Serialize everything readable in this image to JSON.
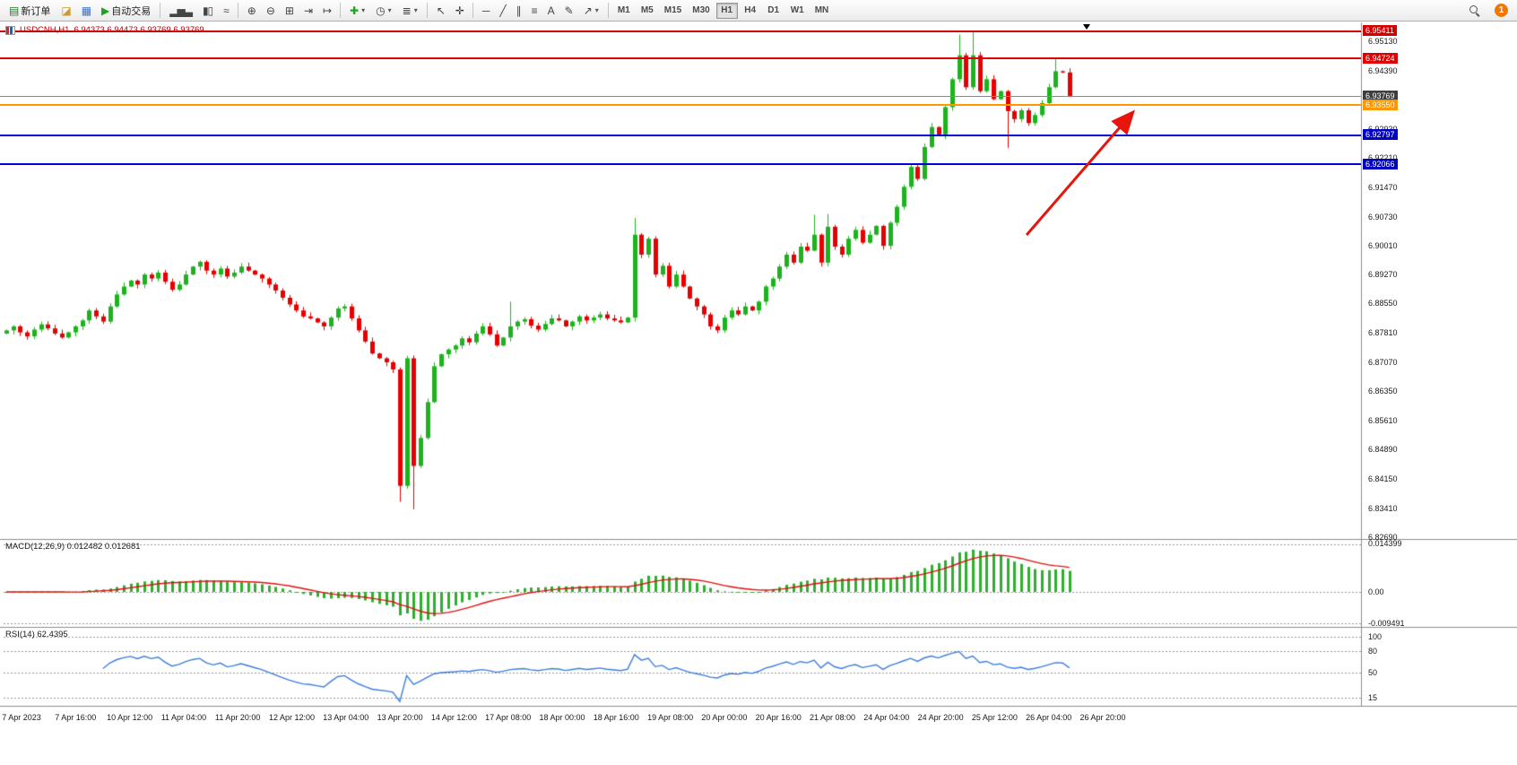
{
  "toolbar": {
    "groups": [
      {
        "items": [
          {
            "name": "new-order",
            "label": "新订单"
          },
          {
            "name": "market-watch"
          },
          {
            "name": "data-window"
          },
          {
            "name": "autotrade",
            "label": "自动交易"
          }
        ]
      },
      {
        "items": [
          {
            "name": "bar-chart"
          },
          {
            "name": "candlestick-chart"
          },
          {
            "name": "line-chart"
          }
        ]
      },
      {
        "items": [
          {
            "name": "zoom-in"
          },
          {
            "name": "zoom-out"
          },
          {
            "name": "tile-windows"
          },
          {
            "name": "auto-scroll"
          },
          {
            "name": "shift-chart"
          }
        ]
      },
      {
        "items": [
          {
            "name": "new-chart",
            "caret": true
          },
          {
            "name": "period",
            "caret": true
          },
          {
            "name": "template",
            "caret": true
          }
        ]
      },
      {
        "items": [
          {
            "name": "cursor"
          },
          {
            "name": "crosshair"
          }
        ]
      },
      {
        "items": [
          {
            "name": "horizontal-line"
          },
          {
            "name": "trendline"
          },
          {
            "name": "equidistant-channel"
          },
          {
            "name": "fibonacci"
          },
          {
            "name": "text"
          },
          {
            "name": "text-label"
          },
          {
            "name": "arrows",
            "caret": true
          }
        ]
      }
    ],
    "timeframes": [
      "M1",
      "M5",
      "M15",
      "M30",
      "H1",
      "H4",
      "D1",
      "W1",
      "MN"
    ],
    "active_timeframe": "H1",
    "notification_count": "1"
  },
  "window": {
    "title_symbol": "USDCNH,H1",
    "title_ohlc": "6.94373 6.94473 6.93769 6.93769"
  },
  "chart_data": {
    "type": "candlestick",
    "symbol": "USDCNH",
    "timeframe": "H1",
    "price_range_visible": [
      6.8267,
      6.9562
    ],
    "closes": [
      6.879,
      6.88,
      6.8785,
      6.8775,
      6.8792,
      6.8805,
      6.8795,
      6.8782,
      6.8772,
      6.8785,
      6.88,
      6.8815,
      6.884,
      6.8825,
      6.8812,
      6.885,
      6.888,
      6.89,
      6.8915,
      6.8905,
      6.893,
      6.892,
      6.8935,
      6.8912,
      6.8892,
      6.8905,
      6.893,
      6.895,
      6.8962,
      6.894,
      6.893,
      6.8945,
      6.8925,
      6.8935,
      6.895,
      6.894,
      6.893,
      6.892,
      6.8905,
      6.889,
      6.8872,
      6.8855,
      6.884,
      6.8825,
      6.882,
      6.881,
      6.88,
      6.8822,
      6.8845,
      6.885,
      6.882,
      6.879,
      6.8762,
      6.8732,
      6.872,
      6.871,
      6.8692,
      6.84,
      6.872,
      6.845,
      6.852,
      6.861,
      6.87,
      6.873,
      6.8742,
      6.8752,
      6.877,
      6.876,
      6.8782,
      6.88,
      6.878,
      6.8752,
      6.8772,
      6.88,
      6.8812,
      6.8818,
      6.8802,
      6.8792,
      6.8806,
      6.882,
      6.8815,
      6.88,
      6.8812,
      6.8825,
      6.8815,
      6.8822,
      6.883,
      6.882,
      6.8815,
      6.881,
      6.8822,
      6.903,
      6.898,
      6.902,
      6.893,
      6.8952,
      6.89,
      6.893,
      6.89,
      6.887,
      6.885,
      6.883,
      6.88,
      6.879,
      6.8822,
      6.884,
      6.883,
      6.885,
      6.884,
      6.8862,
      6.89,
      6.892,
      6.895,
      6.898,
      6.896,
      6.9,
      6.899,
      6.903,
      6.896,
      6.905,
      6.9,
      6.898,
      6.902,
      6.9042,
      6.901,
      6.903,
      6.9052,
      6.9002,
      6.906,
      6.91,
      6.915,
      6.92,
      6.917,
      6.925,
      6.93,
      6.928,
      6.935,
      6.942,
      6.948,
      6.94,
      6.948,
      6.939,
      6.942,
      6.937,
      6.939,
      6.934,
      6.932,
      6.9342,
      6.931,
      6.933,
      6.936,
      6.94,
      6.944,
      6.9437,
      6.93769
    ],
    "wick_overrides": {
      "57": {
        "low": 6.836
      },
      "59": {
        "low": 6.8341
      },
      "73": {
        "high": 6.8862
      },
      "91": {
        "high": 6.9072
      },
      "117": {
        "high": 6.908
      },
      "119": {
        "high": 6.9082
      },
      "138": {
        "high": 6.9532
      },
      "140": {
        "high": 6.9541
      },
      "145": {
        "low": 6.9248
      },
      "152": {
        "high": 6.9472
      },
      "154": {
        "high": 6.94473,
        "low": 6.93769
      }
    },
    "levels": [
      {
        "price": 6.95411,
        "label": "6.95411",
        "color": "#d40000",
        "box": "#d40000",
        "width": 2
      },
      {
        "price": 6.94724,
        "label": "6.94724",
        "color": "#e00000",
        "box": "#e00000",
        "width": 2
      },
      {
        "price": 6.93769,
        "label": "6.93769",
        "color": "#8a8a8a",
        "box": "#3d3d3d",
        "width": 1,
        "role": "bid"
      },
      {
        "price": 6.9355,
        "label": "6.93550",
        "color": "#ff9800",
        "box": "#ff9800",
        "width": 2
      },
      {
        "price": 6.92797,
        "label": "6.92797",
        "color": "#0000d8",
        "box": "#0000c0",
        "width": 2
      },
      {
        "price": 6.92066,
        "label": "6.92066",
        "color": "#0000d8",
        "box": "#0000c0",
        "width": 2
      }
    ],
    "price_axis_labels": [
      "6.95130",
      "6.94390",
      "6.93650",
      "6.92930",
      "6.92210",
      "6.91470",
      "6.90730",
      "6.90010",
      "6.89270",
      "6.88550",
      "6.87810",
      "6.87070",
      "6.86350",
      "6.85610",
      "6.84890",
      "6.84150",
      "6.83410",
      "6.82690"
    ],
    "time_labels": [
      "7 Apr 2023",
      "7 Apr 16:00",
      "10 Apr 12:00",
      "11 Apr 04:00",
      "11 Apr 20:00",
      "12 Apr 12:00",
      "13 Apr 04:00",
      "13 Apr 20:00",
      "14 Apr 12:00",
      "17 Apr 08:00",
      "18 Apr 00:00",
      "18 Apr 16:00",
      "19 Apr 08:00",
      "20 Apr 00:00",
      "20 Apr 16:00",
      "21 Apr 08:00",
      "24 Apr 04:00",
      "24 Apr 20:00",
      "25 Apr 12:00",
      "26 Apr 04:00",
      "26 Apr 20:00"
    ],
    "indicators": {
      "macd": {
        "name": "MACD(12,26,9)",
        "fast": 12,
        "slow": 26,
        "signal": 9,
        "current_values": "0.012482 0.012681",
        "axis_labels": [
          "0.014399",
          "0.00",
          "-0.009491"
        ],
        "histogram_color": "#2fae2f",
        "signal_color": "#e01010"
      },
      "rsi": {
        "name": "RSI(14)",
        "period": 14,
        "current_value": "62.4395",
        "axis_labels": [
          "100",
          "80",
          "50",
          "15"
        ],
        "line_color": "#3d7edb"
      }
    },
    "candle_up_color": "#1eb21e",
    "candle_down_color": "#e60000",
    "annotations": {
      "arrow": {
        "from": [
          1145,
          262
        ],
        "to": [
          1262,
          127
        ],
        "color": "#e8150d"
      }
    }
  }
}
